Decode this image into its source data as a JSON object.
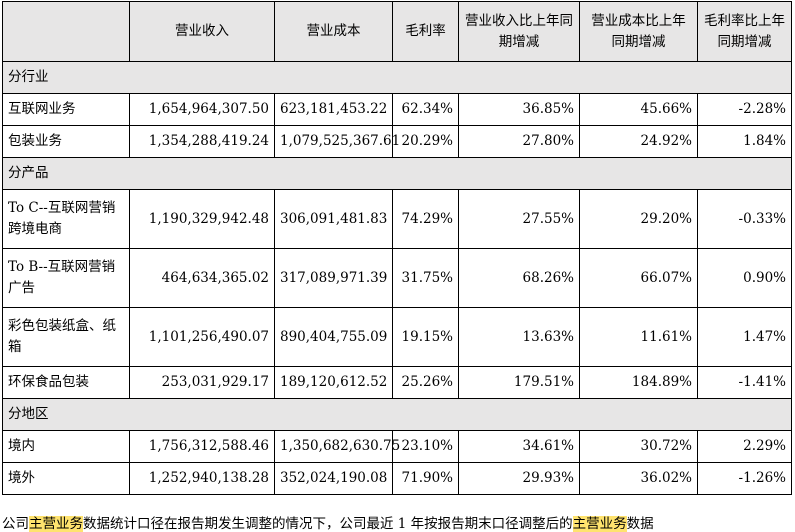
{
  "headers": [
    "",
    "营业收入",
    "营业成本",
    "毛利率",
    "营业收入比上年同期增减",
    "营业成本比上年同期增减",
    "毛利率比上年同期增减"
  ],
  "sections": [
    {
      "title": "分行业",
      "rows": [
        {
          "name": "互联网业务",
          "revenue": "1,654,964,307.50",
          "cost": "623,181,453.22",
          "margin": "62.34%",
          "rev_change": "36.85%",
          "cost_change": "45.66%",
          "margin_change": "-2.28%"
        },
        {
          "name": "包装业务",
          "revenue": "1,354,288,419.24",
          "cost": "1,079,525,367.61",
          "margin": "20.29%",
          "rev_change": "27.80%",
          "cost_change": "24.92%",
          "margin_change": "1.84%"
        }
      ]
    },
    {
      "title": "分产品",
      "rows": [
        {
          "name": "To C--互联网营销跨境电商",
          "revenue": "1,190,329,942.48",
          "cost": "306,091,481.83",
          "margin": "74.29%",
          "rev_change": "27.55%",
          "cost_change": "29.20%",
          "margin_change": "-0.33%"
        },
        {
          "name": "To B--互联网营销广告",
          "revenue": "464,634,365.02",
          "cost": "317,089,971.39",
          "margin": "31.75%",
          "rev_change": "68.26%",
          "cost_change": "66.07%",
          "margin_change": "0.90%"
        },
        {
          "name": "彩色包装纸盒、纸箱",
          "revenue": "1,101,256,490.07",
          "cost": "890,404,755.09",
          "margin": "19.15%",
          "rev_change": "13.63%",
          "cost_change": "11.61%",
          "margin_change": "1.47%"
        },
        {
          "name": "环保食品包装",
          "revenue": "253,031,929.17",
          "cost": "189,120,612.52",
          "margin": "25.26%",
          "rev_change": "179.51%",
          "cost_change": "184.89%",
          "margin_change": "-1.41%"
        }
      ]
    },
    {
      "title": "分地区",
      "rows": [
        {
          "name": "境内",
          "revenue": "1,756,312,588.46",
          "cost": "1,350,682,630.75",
          "margin": "23.10%",
          "rev_change": "34.61%",
          "cost_change": "30.72%",
          "margin_change": "2.29%"
        },
        {
          "name": "境外",
          "revenue": "1,252,940,138.28",
          "cost": "352,024,190.08",
          "margin": "71.90%",
          "rev_change": "29.93%",
          "cost_change": "36.02%",
          "margin_change": "-1.26%"
        }
      ]
    }
  ],
  "footnote": {
    "p1": "公司",
    "h1": "主营业务",
    "p2": "数据统计口径在报告期发生调整的情况下，公司最近 1 年按报告期末口径调整后的",
    "h2": "主营业务",
    "p3": "数据"
  }
}
